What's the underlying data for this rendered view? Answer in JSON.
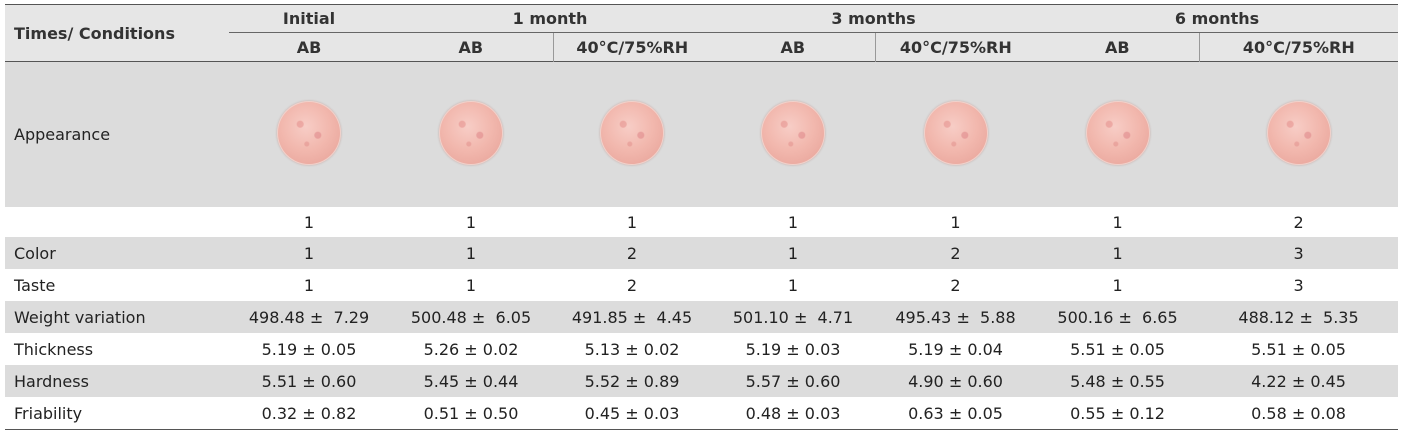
{
  "header": {
    "corner": "Times/ Conditions",
    "groups": [
      "Initial",
      "1 month",
      "3 months",
      "6 months"
    ],
    "subcols": [
      "AB",
      "AB",
      "40°C/75%RH",
      "AB",
      "40°C/75%RH",
      "AB",
      "40°C/75%RH"
    ]
  },
  "rows": {
    "appearance": {
      "label": "Appearance",
      "scores": [
        "1",
        "1",
        "1",
        "1",
        "1",
        "1",
        "2"
      ]
    },
    "color": {
      "label": "Color",
      "values": [
        "1",
        "1",
        "2",
        "1",
        "2",
        "1",
        "3"
      ]
    },
    "taste": {
      "label": "Taste",
      "values": [
        "1",
        "1",
        "2",
        "1",
        "2",
        "1",
        "3"
      ]
    },
    "weight": {
      "label": "Weight variation",
      "values": [
        "498.48 ±  7.29",
        "500.48 ±  6.05",
        "491.85 ±  4.45",
        "501.10 ±  4.71",
        "495.43 ±  5.88",
        "500.16 ±  6.65",
        "488.12 ±  5.35"
      ]
    },
    "thickness": {
      "label": "Thickness",
      "values": [
        "5.19 ± 0.05",
        "5.26 ± 0.02",
        "5.13 ± 0.02",
        "5.19 ± 0.03",
        "5.19 ± 0.04",
        "5.51 ± 0.05",
        "5.51 ± 0.05"
      ]
    },
    "hardness": {
      "label": "Hardness",
      "values": [
        "5.51 ± 0.60",
        "5.45 ± 0.44",
        "5.52 ± 0.89",
        "5.57 ± 0.60",
        "4.90 ± 0.60",
        "5.48 ± 0.55",
        "4.22 ± 0.45"
      ]
    },
    "friability": {
      "label": "Friability",
      "values": [
        "0.32 ± 0.82",
        "0.51 ± 0.50",
        "0.45 ± 0.03",
        "0.48 ± 0.03",
        "0.63 ± 0.05",
        "0.55 ± 0.12",
        "0.58 ± 0.08"
      ]
    }
  },
  "colors": {
    "header_bg": "#e6e6e6",
    "shade_bg": "#dcdcdc",
    "tablet": "#f2b8ae"
  }
}
